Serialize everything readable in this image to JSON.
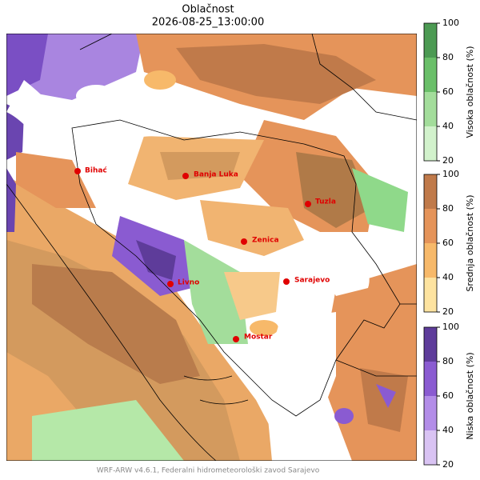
{
  "title": "Oblačnost",
  "subtitle": "2026-08-25_13:00:00",
  "cities": [
    {
      "name": "Bihać"
    },
    {
      "name": "Banja Luka"
    },
    {
      "name": "Tuzla"
    },
    {
      "name": "Zenica"
    },
    {
      "name": "Sarajevo"
    },
    {
      "name": "Livno"
    },
    {
      "name": "Mostar"
    }
  ],
  "colorbars": [
    {
      "label": "Visoka oblačnost (%)",
      "ticks": [
        20,
        40,
        60,
        80,
        100
      ],
      "colors": [
        "#d2f2cc",
        "#a3dd9b",
        "#6abf69",
        "#4c9a53"
      ]
    },
    {
      "label": "Srednja oblačnost (%)",
      "ticks": [
        20,
        40,
        60,
        80,
        100
      ],
      "colors": [
        "#fde3a0",
        "#f7b96a",
        "#e5945a",
        "#c07a4a"
      ]
    },
    {
      "label": "Niska oblačnost (%)",
      "ticks": [
        20,
        40,
        60,
        80,
        100
      ],
      "colors": [
        "#d9c3f3",
        "#b38de8",
        "#8a5bd1",
        "#5e3c9a"
      ]
    }
  ],
  "footer": "WRF-ARW v4.6.1, Federalni hidrometeorološki zavod Sarajevo"
}
